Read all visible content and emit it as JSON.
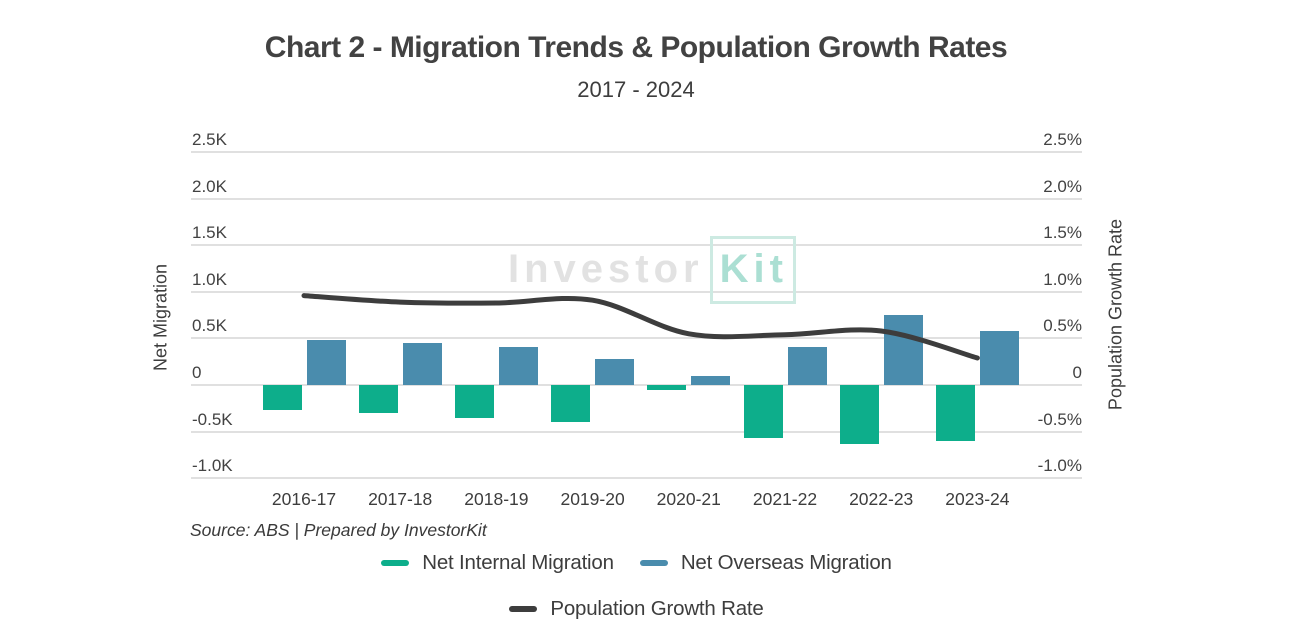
{
  "header": {
    "title": "Chart 2 - Migration Trends & Population Growth Rates",
    "subtitle": "2017 - 2024"
  },
  "watermark": {
    "part1": "Investor",
    "part2": "Kit"
  },
  "footer": {
    "source": "Source: ABS | Prepared by InvestorKit"
  },
  "chart_data": {
    "type": "combo-bar-line",
    "categories": [
      "2016-17",
      "2017-18",
      "2018-19",
      "2019-20",
      "2020-21",
      "2021-22",
      "2022-23",
      "2023-24"
    ],
    "series": [
      {
        "name": "Net Internal Migration",
        "type": "bar",
        "color": "#0dae8b",
        "unit": "K",
        "values": [
          -0.27,
          -0.3,
          -0.35,
          -0.4,
          -0.05,
          -0.57,
          -0.63,
          -0.6
        ]
      },
      {
        "name": "Net Overseas Migration",
        "type": "bar",
        "color": "#4a8cad",
        "unit": "K",
        "values": [
          0.48,
          0.45,
          0.41,
          0.28,
          0.1,
          0.41,
          0.75,
          0.58
        ]
      },
      {
        "name": "Population Growth Rate",
        "type": "line",
        "color": "#3d3d3d",
        "unit": "%",
        "values": [
          0.96,
          0.89,
          0.88,
          0.91,
          0.55,
          0.54,
          0.58,
          0.29
        ]
      }
    ],
    "left_axis": {
      "title": "Net Migration",
      "tick_values": [
        2.5,
        2.0,
        1.5,
        1.0,
        0.5,
        0,
        -0.5,
        -1.0
      ],
      "tick_labels": [
        "2.5K",
        "2.0K",
        "1.5K",
        "1.0K",
        "0.5K",
        "0",
        "-0.5K",
        "-1.0K"
      ],
      "range": [
        -1.0,
        2.5
      ]
    },
    "right_axis": {
      "title": "Population Growth Rate",
      "tick_labels": [
        "2.5%",
        "2.0%",
        "1.5%",
        "1.0%",
        "0.5%",
        "0",
        "-0.5%",
        "-1.0%"
      ],
      "range": [
        -1.0,
        2.5
      ]
    },
    "grid": true,
    "legend_position": "bottom"
  }
}
